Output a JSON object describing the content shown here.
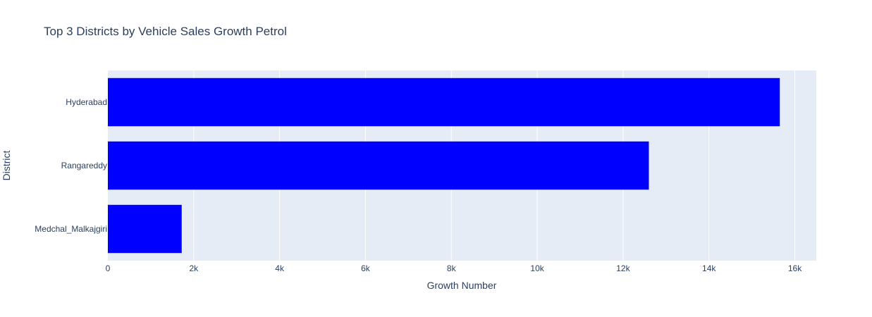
{
  "chart_data": {
    "type": "bar",
    "orientation": "horizontal",
    "title": "Top 3 Districts by Vehicle Sales Growth Petrol",
    "xlabel": "Growth Number",
    "ylabel": "District",
    "categories": [
      "Hyderabad",
      "Rangareddy",
      "Medchal_Malkajgiri"
    ],
    "values": [
      15650,
      12600,
      1720
    ],
    "xlim": [
      0,
      16500
    ],
    "xticks": [
      0,
      2000,
      4000,
      6000,
      8000,
      10000,
      12000,
      14000,
      16000
    ],
    "xtick_labels": [
      "0",
      "2k",
      "4k",
      "6k",
      "8k",
      "10k",
      "12k",
      "14k",
      "16k"
    ],
    "bar_color": "#0000ff",
    "plot_background": "#e5ecf6",
    "grid": true
  }
}
